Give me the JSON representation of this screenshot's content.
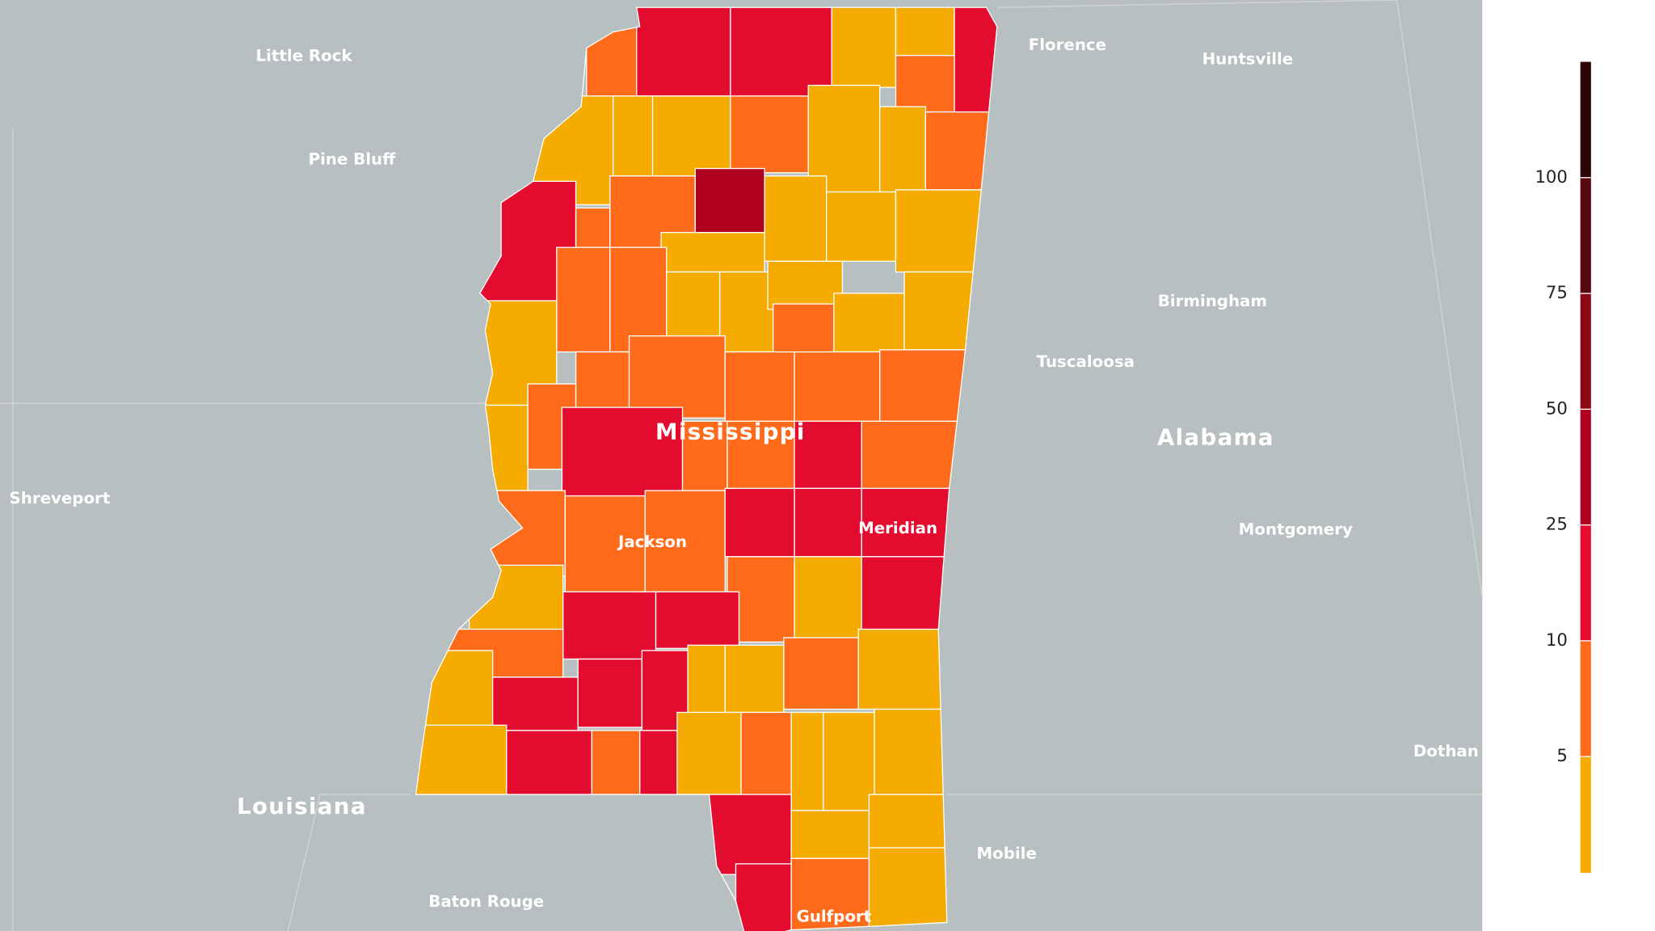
{
  "map": {
    "cities": [
      "Little Rock",
      "Pine Bluff",
      "Shreveport",
      "Baton Rouge",
      "Florence",
      "Huntsville",
      "Birmingham",
      "Tuscaloosa",
      "Montgomery",
      "Dothan",
      "Mobile",
      "Jackson",
      "Meridian",
      "Gulfport"
    ],
    "states": [
      "Mississippi",
      "Alabama",
      "Louisiana"
    ],
    "legend": {
      "ticks": [
        5,
        10,
        25,
        50,
        75,
        100
      ],
      "colors": [
        "#f5ab00",
        "#ff6b1a",
        "#e40c2e",
        "#b0001f",
        "#8a0a17",
        "#5a0810",
        "#2e0507"
      ]
    }
  }
}
